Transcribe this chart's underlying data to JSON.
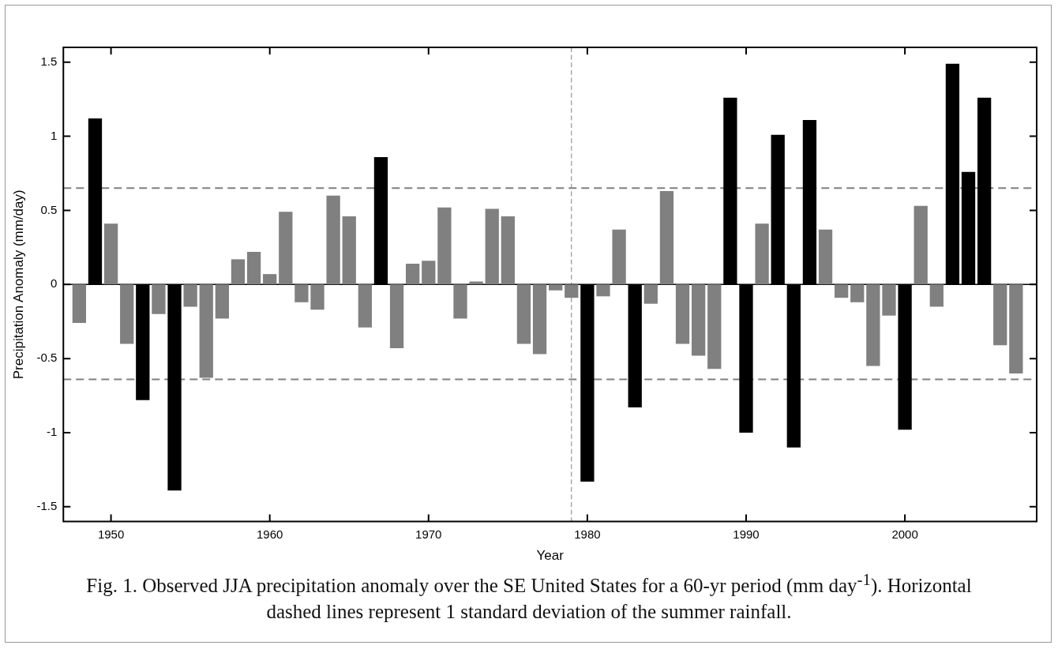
{
  "chart_data": {
    "type": "bar",
    "xlabel": "Year",
    "ylabel": "Precipitation Anomaly (mm/day)",
    "x": [
      1948,
      1949,
      1950,
      1951,
      1952,
      1953,
      1954,
      1955,
      1956,
      1957,
      1958,
      1959,
      1960,
      1961,
      1962,
      1963,
      1964,
      1965,
      1966,
      1967,
      1968,
      1969,
      1970,
      1971,
      1972,
      1973,
      1974,
      1975,
      1976,
      1977,
      1978,
      1979,
      1980,
      1981,
      1982,
      1983,
      1984,
      1985,
      1986,
      1987,
      1988,
      1989,
      1990,
      1991,
      1992,
      1993,
      1994,
      1995,
      1996,
      1997,
      1998,
      1999,
      2000,
      2001,
      2002,
      2003,
      2004,
      2005,
      2006,
      2007
    ],
    "values": [
      -0.26,
      1.12,
      0.41,
      -0.4,
      -0.78,
      -0.2,
      -1.39,
      -0.15,
      -0.63,
      -0.23,
      0.17,
      0.22,
      0.07,
      0.49,
      -0.12,
      -0.17,
      0.6,
      0.46,
      -0.29,
      0.86,
      -0.43,
      0.14,
      0.16,
      0.52,
      -0.23,
      0.02,
      0.51,
      0.46,
      -0.4,
      -0.47,
      -0.04,
      -0.09,
      -1.33,
      -0.08,
      0.37,
      -0.83,
      -0.13,
      0.63,
      -0.4,
      -0.48,
      -0.57,
      1.26,
      -1,
      0.41,
      1.01,
      -1.1,
      1.11,
      0.37,
      -0.09,
      -0.12,
      -0.55,
      -0.21,
      -0.98,
      0.53,
      -0.15,
      1.49,
      0.76,
      1.26,
      -0.41,
      -0.6
    ],
    "colors": [
      "#808080",
      "#000000",
      "#808080",
      "#808080",
      "#000000",
      "#808080",
      "#000000",
      "#808080",
      "#808080",
      "#808080",
      "#808080",
      "#808080",
      "#808080",
      "#808080",
      "#808080",
      "#808080",
      "#808080",
      "#808080",
      "#808080",
      "#000000",
      "#808080",
      "#808080",
      "#808080",
      "#808080",
      "#808080",
      "#808080",
      "#808080",
      "#808080",
      "#808080",
      "#808080",
      "#808080",
      "#808080",
      "#000000",
      "#808080",
      "#808080",
      "#000000",
      "#808080",
      "#808080",
      "#808080",
      "#808080",
      "#808080",
      "#000000",
      "#000000",
      "#808080",
      "#000000",
      "#000000",
      "#000000",
      "#808080",
      "#808080",
      "#808080",
      "#808080",
      "#808080",
      "#000000",
      "#808080",
      "#808080",
      "#000000",
      "#000000",
      "#000000",
      "#808080",
      "#808080"
    ],
    "xlim": [
      1947,
      2008.3
    ],
    "xticks": [
      1950,
      1960,
      1970,
      1980,
      1990,
      2000
    ],
    "ylim": [
      -1.6,
      1.6
    ],
    "yticks": [
      -1.5,
      -1,
      -0.5,
      0,
      0.5,
      1,
      1.5
    ],
    "ref_lines": [
      {
        "axis": "y",
        "value": 0.65,
        "color": "#808080",
        "line_style": "dashed"
      },
      {
        "axis": "y",
        "value": -0.64,
        "color": "#808080",
        "line_style": "dashed"
      },
      {
        "axis": "x",
        "value": 1979,
        "color": "#808080",
        "line_style": "dashed"
      },
      {
        "axis": "y",
        "value": 0,
        "color": "#000000",
        "line_style": "solid"
      }
    ],
    "annotations": [
      "Fig. 1. Observed JJA precipitation anomaly over the SE United States for a 60-yr period (mm day$^{-1}$). Horizontal dashed lines represent 1 standard deviation of the summer rainfall."
    ],
    "grid": false,
    "legend": false
  }
}
